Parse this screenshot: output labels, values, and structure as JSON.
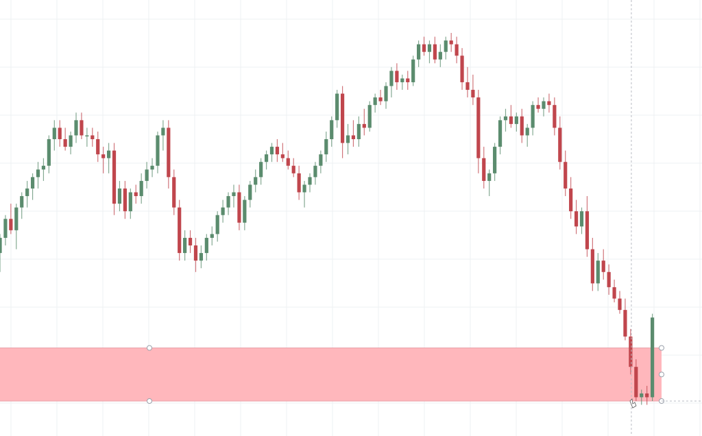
{
  "chart_data": {
    "type": "candlestick",
    "title": "",
    "xlabel": "",
    "ylabel": "",
    "grid": true,
    "ylim": [
      0,
      100
    ],
    "colors": {
      "up": "#5b8c6e",
      "down": "#c0464d",
      "zone_fill": "#ffb3b8",
      "zone_edge": "#e8a0a8",
      "grid": "#eef0f3",
      "crosshair": "#b8bcc4"
    },
    "support_zone": {
      "low": 8,
      "high": 22
    },
    "crosshair": {
      "candle_index": 115,
      "price": 8
    },
    "candles": [
      {
        "o": 47,
        "h": 52,
        "l": 42,
        "c": 51
      },
      {
        "o": 51,
        "h": 57,
        "l": 49,
        "c": 56
      },
      {
        "o": 56,
        "h": 60,
        "l": 52,
        "c": 53
      },
      {
        "o": 53,
        "h": 60,
        "l": 48,
        "c": 59
      },
      {
        "o": 59,
        "h": 63,
        "l": 56,
        "c": 62
      },
      {
        "o": 62,
        "h": 66,
        "l": 59,
        "c": 64
      },
      {
        "o": 64,
        "h": 68,
        "l": 61,
        "c": 67
      },
      {
        "o": 67,
        "h": 71,
        "l": 64,
        "c": 69
      },
      {
        "o": 69,
        "h": 72,
        "l": 66,
        "c": 70
      },
      {
        "o": 70,
        "h": 78,
        "l": 68,
        "c": 77
      },
      {
        "o": 77,
        "h": 82,
        "l": 74,
        "c": 80
      },
      {
        "o": 80,
        "h": 82,
        "l": 75,
        "c": 77
      },
      {
        "o": 77,
        "h": 80,
        "l": 74,
        "c": 75
      },
      {
        "o": 75,
        "h": 79,
        "l": 73,
        "c": 78
      },
      {
        "o": 78,
        "h": 84,
        "l": 76,
        "c": 82
      },
      {
        "o": 82,
        "h": 84,
        "l": 77,
        "c": 78
      },
      {
        "o": 78,
        "h": 80,
        "l": 75,
        "c": 78
      },
      {
        "o": 78,
        "h": 80,
        "l": 75,
        "c": 77
      },
      {
        "o": 77,
        "h": 79,
        "l": 71,
        "c": 73
      },
      {
        "o": 73,
        "h": 75,
        "l": 68,
        "c": 72
      },
      {
        "o": 72,
        "h": 76,
        "l": 68,
        "c": 74
      },
      {
        "o": 74,
        "h": 76,
        "l": 57,
        "c": 60
      },
      {
        "o": 60,
        "h": 66,
        "l": 58,
        "c": 64
      },
      {
        "o": 64,
        "h": 66,
        "l": 56,
        "c": 58
      },
      {
        "o": 58,
        "h": 64,
        "l": 56,
        "c": 63
      },
      {
        "o": 63,
        "h": 65,
        "l": 60,
        "c": 62
      },
      {
        "o": 62,
        "h": 68,
        "l": 60,
        "c": 66
      },
      {
        "o": 66,
        "h": 71,
        "l": 64,
        "c": 69
      },
      {
        "o": 69,
        "h": 72,
        "l": 67,
        "c": 70
      },
      {
        "o": 70,
        "h": 79,
        "l": 68,
        "c": 78
      },
      {
        "o": 78,
        "h": 82,
        "l": 74,
        "c": 80
      },
      {
        "o": 80,
        "h": 82,
        "l": 64,
        "c": 67
      },
      {
        "o": 67,
        "h": 69,
        "l": 57,
        "c": 59
      },
      {
        "o": 59,
        "h": 61,
        "l": 45,
        "c": 47
      },
      {
        "o": 47,
        "h": 53,
        "l": 45,
        "c": 51
      },
      {
        "o": 51,
        "h": 53,
        "l": 47,
        "c": 49
      },
      {
        "o": 49,
        "h": 51,
        "l": 42,
        "c": 45
      },
      {
        "o": 45,
        "h": 49,
        "l": 43,
        "c": 47
      },
      {
        "o": 47,
        "h": 52,
        "l": 45,
        "c": 51
      },
      {
        "o": 51,
        "h": 54,
        "l": 49,
        "c": 52
      },
      {
        "o": 52,
        "h": 58,
        "l": 50,
        "c": 57
      },
      {
        "o": 57,
        "h": 61,
        "l": 55,
        "c": 59
      },
      {
        "o": 59,
        "h": 63,
        "l": 57,
        "c": 62
      },
      {
        "o": 62,
        "h": 65,
        "l": 59,
        "c": 63
      },
      {
        "o": 63,
        "h": 65,
        "l": 53,
        "c": 55
      },
      {
        "o": 55,
        "h": 62,
        "l": 53,
        "c": 61
      },
      {
        "o": 61,
        "h": 66,
        "l": 59,
        "c": 65
      },
      {
        "o": 65,
        "h": 69,
        "l": 63,
        "c": 67
      },
      {
        "o": 67,
        "h": 72,
        "l": 65,
        "c": 71
      },
      {
        "o": 71,
        "h": 74,
        "l": 69,
        "c": 73
      },
      {
        "o": 73,
        "h": 76,
        "l": 71,
        "c": 75
      },
      {
        "o": 75,
        "h": 77,
        "l": 71,
        "c": 73
      },
      {
        "o": 73,
        "h": 76,
        "l": 71,
        "c": 72
      },
      {
        "o": 72,
        "h": 74,
        "l": 69,
        "c": 70
      },
      {
        "o": 70,
        "h": 72,
        "l": 67,
        "c": 68
      },
      {
        "o": 68,
        "h": 70,
        "l": 61,
        "c": 63
      },
      {
        "o": 63,
        "h": 66,
        "l": 59,
        "c": 65
      },
      {
        "o": 65,
        "h": 68,
        "l": 63,
        "c": 67
      },
      {
        "o": 67,
        "h": 71,
        "l": 65,
        "c": 70
      },
      {
        "o": 70,
        "h": 74,
        "l": 68,
        "c": 73
      },
      {
        "o": 73,
        "h": 79,
        "l": 71,
        "c": 77
      },
      {
        "o": 77,
        "h": 83,
        "l": 75,
        "c": 82
      },
      {
        "o": 82,
        "h": 90,
        "l": 80,
        "c": 89
      },
      {
        "o": 89,
        "h": 91,
        "l": 72,
        "c": 76
      },
      {
        "o": 76,
        "h": 81,
        "l": 73,
        "c": 78
      },
      {
        "o": 78,
        "h": 82,
        "l": 75,
        "c": 77
      },
      {
        "o": 77,
        "h": 83,
        "l": 75,
        "c": 81
      },
      {
        "o": 81,
        "h": 85,
        "l": 78,
        "c": 80
      },
      {
        "o": 80,
        "h": 87,
        "l": 79,
        "c": 86
      },
      {
        "o": 86,
        "h": 89,
        "l": 84,
        "c": 88
      },
      {
        "o": 88,
        "h": 90,
        "l": 86,
        "c": 87
      },
      {
        "o": 87,
        "h": 92,
        "l": 85,
        "c": 91
      },
      {
        "o": 91,
        "h": 96,
        "l": 88,
        "c": 95
      },
      {
        "o": 95,
        "h": 97,
        "l": 90,
        "c": 92
      },
      {
        "o": 92,
        "h": 94,
        "l": 90,
        "c": 93
      },
      {
        "o": 93,
        "h": 95,
        "l": 90,
        "c": 92
      },
      {
        "o": 92,
        "h": 99,
        "l": 91,
        "c": 98
      },
      {
        "o": 98,
        "h": 103,
        "l": 96,
        "c": 102
      },
      {
        "o": 102,
        "h": 104,
        "l": 99,
        "c": 100
      },
      {
        "o": 100,
        "h": 103,
        "l": 97,
        "c": 102
      },
      {
        "o": 102,
        "h": 104,
        "l": 97,
        "c": 98
      },
      {
        "o": 98,
        "h": 102,
        "l": 96,
        "c": 100
      },
      {
        "o": 100,
        "h": 104,
        "l": 98,
        "c": 103
      },
      {
        "o": 103,
        "h": 105,
        "l": 100,
        "c": 102
      },
      {
        "o": 102,
        "h": 104,
        "l": 97,
        "c": 99
      },
      {
        "o": 99,
        "h": 101,
        "l": 90,
        "c": 92
      },
      {
        "o": 92,
        "h": 96,
        "l": 88,
        "c": 90
      },
      {
        "o": 90,
        "h": 94,
        "l": 86,
        "c": 88
      },
      {
        "o": 88,
        "h": 90,
        "l": 68,
        "c": 72
      },
      {
        "o": 72,
        "h": 75,
        "l": 64,
        "c": 66
      },
      {
        "o": 66,
        "h": 69,
        "l": 62,
        "c": 68
      },
      {
        "o": 68,
        "h": 76,
        "l": 66,
        "c": 75
      },
      {
        "o": 75,
        "h": 83,
        "l": 73,
        "c": 82
      },
      {
        "o": 82,
        "h": 85,
        "l": 79,
        "c": 83
      },
      {
        "o": 83,
        "h": 86,
        "l": 80,
        "c": 81
      },
      {
        "o": 81,
        "h": 84,
        "l": 79,
        "c": 83
      },
      {
        "o": 83,
        "h": 85,
        "l": 76,
        "c": 78
      },
      {
        "o": 78,
        "h": 81,
        "l": 75,
        "c": 80
      },
      {
        "o": 80,
        "h": 87,
        "l": 78,
        "c": 86
      },
      {
        "o": 86,
        "h": 88,
        "l": 84,
        "c": 85
      },
      {
        "o": 85,
        "h": 88,
        "l": 83,
        "c": 87
      },
      {
        "o": 87,
        "h": 89,
        "l": 84,
        "c": 86
      },
      {
        "o": 86,
        "h": 88,
        "l": 78,
        "c": 80
      },
      {
        "o": 80,
        "h": 83,
        "l": 69,
        "c": 71
      },
      {
        "o": 71,
        "h": 74,
        "l": 62,
        "c": 64
      },
      {
        "o": 64,
        "h": 67,
        "l": 56,
        "c": 58
      },
      {
        "o": 58,
        "h": 61,
        "l": 52,
        "c": 54
      },
      {
        "o": 54,
        "h": 59,
        "l": 52,
        "c": 58
      },
      {
        "o": 58,
        "h": 62,
        "l": 46,
        "c": 48
      },
      {
        "o": 48,
        "h": 51,
        "l": 37,
        "c": 39
      },
      {
        "o": 39,
        "h": 47,
        "l": 37,
        "c": 45
      },
      {
        "o": 45,
        "h": 48,
        "l": 40,
        "c": 42
      },
      {
        "o": 42,
        "h": 44,
        "l": 36,
        "c": 38
      },
      {
        "o": 38,
        "h": 40,
        "l": 34,
        "c": 35
      },
      {
        "o": 35,
        "h": 37,
        "l": 31,
        "c": 32
      },
      {
        "o": 32,
        "h": 35,
        "l": 24,
        "c": 25
      },
      {
        "o": 25,
        "h": 27,
        "l": 15,
        "c": 17
      },
      {
        "o": 17,
        "h": 19,
        "l": 8,
        "c": 9
      },
      {
        "o": 9,
        "h": 11,
        "l": 7,
        "c": 10
      },
      {
        "o": 10,
        "h": 12,
        "l": 7,
        "c": 9
      },
      {
        "o": 9,
        "h": 31,
        "l": 8,
        "c": 30
      }
    ]
  }
}
